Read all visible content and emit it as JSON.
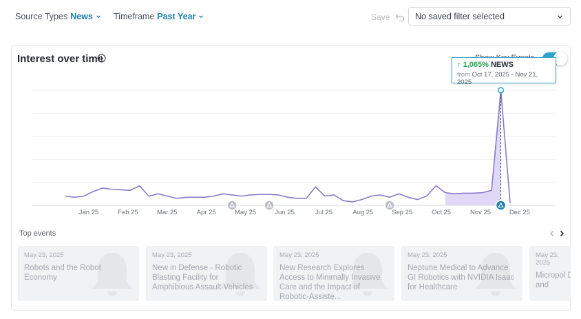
{
  "filters": {
    "source_types": {
      "label": "Source Types",
      "value": "News"
    },
    "timeframe": {
      "label": "Timeframe",
      "value": "Past Year"
    },
    "save_label": "Save",
    "saved_filter": "No saved filter selected"
  },
  "card": {
    "title": "Interest over time",
    "key_events_label": "Show Key Events",
    "key_events_enabled": true
  },
  "tooltip": {
    "percent": "1,065%",
    "source": "NEWS",
    "from_label": "from",
    "date_range": "Oct 17, 2025 - Nov 21, 2025"
  },
  "chart_data": {
    "type": "area",
    "x_ticks": [
      "Jan 25",
      "Feb 25",
      "Mar 25",
      "Apr 25",
      "May 25",
      "Jun 25",
      "Jul 25",
      "Aug 25",
      "Sep 25",
      "Oct 25",
      "Nov 25",
      "Dec 25"
    ],
    "series": [
      {
        "values": [
          8,
          7,
          8,
          12,
          15,
          14,
          13.5,
          13,
          17,
          8,
          10,
          8,
          6,
          7,
          7,
          7,
          8,
          10,
          9,
          8,
          9,
          9.5,
          9.5,
          9,
          7,
          6,
          6,
          16,
          8,
          9,
          4,
          3,
          5,
          8,
          9,
          7,
          10,
          7,
          5,
          8,
          17,
          11,
          10,
          10.5,
          10.5,
          11,
          13,
          100,
          2
        ]
      }
    ],
    "highlight_range": [
      41,
      47
    ],
    "peak_index": 47,
    "key_event_indices": [
      18,
      22,
      35,
      47
    ],
    "ylim": [
      0,
      100
    ],
    "grid": true,
    "colors": {
      "line": "#8a79c9",
      "fill": "#d9d2f4",
      "accent": "#2aa8d2"
    }
  },
  "top_events": {
    "label": "Top events",
    "items": [
      {
        "date": "May 23, 2025",
        "title": "Robots and the Robot Economy"
      },
      {
        "date": "May 23, 2025",
        "title": "New in Defense - Robotic Blasting Facility for Amphibious Assault Vehicles"
      },
      {
        "date": "May 23, 2025",
        "title": "New Research Explores Access to Minimally Invasive Care and the Impact of Robotic-Assiste..."
      },
      {
        "date": "May 23, 2025",
        "title": "Neptune Medical to Advance GI Robotics with NVIDIA Isaac for Healthcare"
      },
      {
        "date": "May 23, 2025",
        "title": "Micropol Deliver A (AI) and"
      }
    ]
  }
}
